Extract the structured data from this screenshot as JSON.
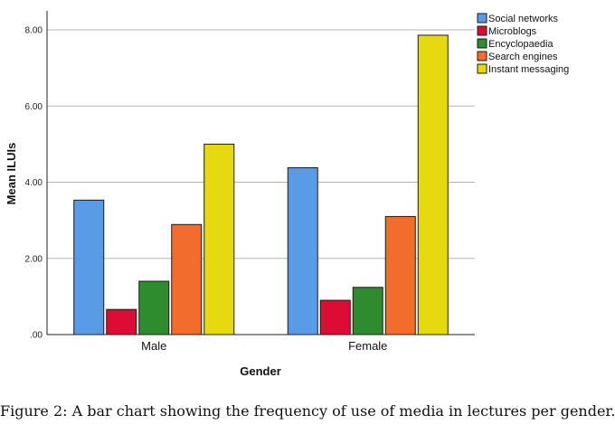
{
  "chart_data": {
    "type": "bar",
    "categories": [
      "Male",
      "Female"
    ],
    "series": [
      {
        "name": "Social networks",
        "color": "#5a9be6",
        "values": [
          3.53,
          4.38
        ]
      },
      {
        "name": "Microblogs",
        "color": "#dc0c35",
        "values": [
          0.66,
          0.9
        ]
      },
      {
        "name": "Encyclopaedia",
        "color": "#2e8b2e",
        "values": [
          1.4,
          1.24
        ]
      },
      {
        "name": "Search engines",
        "color": "#f26c2e",
        "values": [
          2.89,
          3.1
        ]
      },
      {
        "name": "Instant messaging",
        "color": "#e6d90f",
        "values": [
          5.0,
          7.86
        ]
      }
    ],
    "xlabel": "Gender",
    "ylabel": "Mean ILUIs",
    "ylim": [
      0,
      8.5
    ],
    "yticks": [
      0,
      2,
      4,
      6,
      8
    ],
    "ytick_labels": [
      ".00",
      "2.00",
      "4.00",
      "6.00",
      "8.00"
    ],
    "grid": true,
    "legend_position": "top-right"
  },
  "caption": "Figure 2: A bar chart showing the frequency of use of media in lectures per gender."
}
